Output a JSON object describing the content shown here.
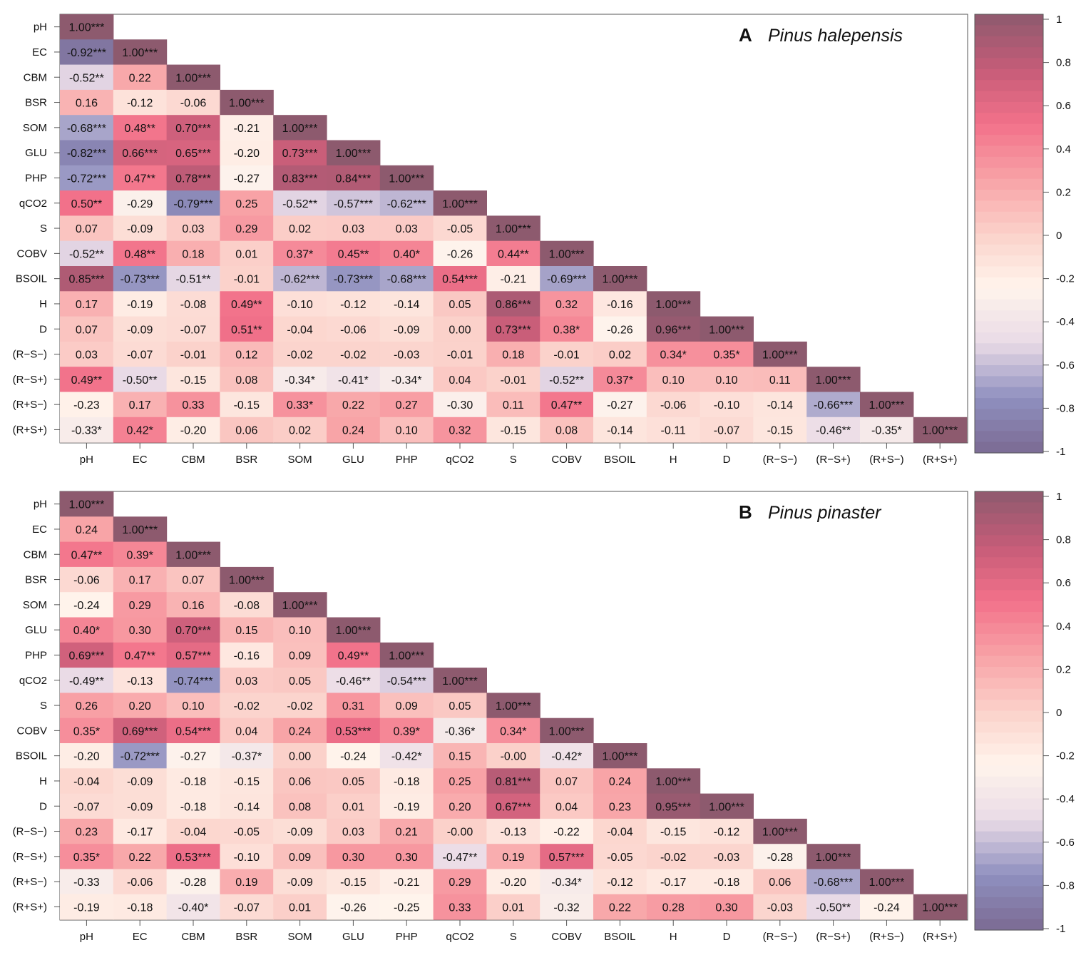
{
  "chart_data": [
    {
      "type": "heatmap",
      "panel_letter": "A",
      "title": "Pinus halepensis",
      "variables": [
        "pH",
        "EC",
        "CBM",
        "BSR",
        "SOM",
        "GLU",
        "PHP",
        "qCO2",
        "S",
        "COBV",
        "BSOIL",
        "H",
        "D",
        "(R−S−)",
        "(R−S+)",
        "(R+S−)",
        "(R+S+)"
      ],
      "colorbar_ticks": [
        "1",
        "0.8",
        "0.6",
        "0.4",
        "0.2",
        "0",
        "-0.2",
        "-0.4",
        "-0.6",
        "-0.8",
        "-1"
      ],
      "value_range": [
        -1,
        1
      ],
      "rows": [
        [
          "1.00***"
        ],
        [
          "-0.92***",
          "1.00***"
        ],
        [
          "-0.52**",
          "0.22",
          "1.00***"
        ],
        [
          "0.16",
          "-0.12",
          "-0.06",
          "1.00***"
        ],
        [
          "-0.68***",
          "0.48**",
          "0.70***",
          "-0.21",
          "1.00***"
        ],
        [
          "-0.82***",
          "0.66***",
          "0.65***",
          "-0.20",
          "0.73***",
          "1.00***"
        ],
        [
          "-0.72***",
          "0.47**",
          "0.78***",
          "-0.27",
          "0.83***",
          "0.84***",
          "1.00***"
        ],
        [
          "0.50**",
          "-0.29",
          "-0.79***",
          "0.25",
          "-0.52**",
          "-0.57***",
          "-0.62***",
          "1.00***"
        ],
        [
          "0.07",
          "-0.09",
          "0.03",
          "0.29",
          "0.02",
          "0.03",
          "0.03",
          "-0.05",
          "1.00***"
        ],
        [
          "-0.52**",
          "0.48**",
          "0.18",
          "0.01",
          "0.37*",
          "0.45**",
          "0.40*",
          "-0.26",
          "0.44**",
          "1.00***"
        ],
        [
          "0.85***",
          "-0.73***",
          "-0.51**",
          "-0.01",
          "-0.62***",
          "-0.73***",
          "-0.68***",
          "0.54***",
          "-0.21",
          "-0.69***",
          "1.00***"
        ],
        [
          "0.17",
          "-0.19",
          "-0.08",
          "0.49**",
          "-0.10",
          "-0.12",
          "-0.14",
          "0.05",
          "0.86***",
          "0.32",
          "-0.16",
          "1.00***"
        ],
        [
          "0.07",
          "-0.09",
          "-0.07",
          "0.51**",
          "-0.04",
          "-0.06",
          "-0.09",
          "0.00",
          "0.73***",
          "0.38*",
          "-0.26",
          "0.96***",
          "1.00***"
        ],
        [
          "0.03",
          "-0.07",
          "-0.01",
          "0.12",
          "-0.02",
          "-0.02",
          "-0.03",
          "-0.01",
          "0.18",
          "-0.01",
          "0.02",
          "0.34*",
          "0.35*",
          "1.00***"
        ],
        [
          "0.49**",
          "-0.50**",
          "-0.15",
          "0.08",
          "-0.34*",
          "-0.41*",
          "-0.34*",
          "0.04",
          "-0.01",
          "-0.52**",
          "0.37*",
          "0.10",
          "0.10",
          "0.11",
          "1.00***"
        ],
        [
          "-0.23",
          "0.17",
          "0.33",
          "-0.15",
          "0.33*",
          "0.22",
          "0.27",
          "-0.30",
          "0.11",
          "0.47**",
          "-0.27",
          "-0.06",
          "-0.10",
          "-0.14",
          "-0.66***",
          "1.00***"
        ],
        [
          "-0.33*",
          "0.42*",
          "-0.20",
          "0.06",
          "0.02",
          "0.24",
          "0.10",
          "0.32",
          "-0.15",
          "0.08",
          "-0.14",
          "-0.11",
          "-0.07",
          "-0.15",
          "-0.46**",
          "-0.35*",
          "1.00***"
        ]
      ]
    },
    {
      "type": "heatmap",
      "panel_letter": "B",
      "title": "Pinus pinaster",
      "variables": [
        "pH",
        "EC",
        "CBM",
        "BSR",
        "SOM",
        "GLU",
        "PHP",
        "qCO2",
        "S",
        "COBV",
        "BSOIL",
        "H",
        "D",
        "(R−S−)",
        "(R−S+)",
        "(R+S−)",
        "(R+S+)"
      ],
      "colorbar_ticks": [
        "1",
        "0.8",
        "0.6",
        "0.4",
        "0.2",
        "0",
        "-0.2",
        "-0.4",
        "-0.6",
        "-0.8",
        "-1"
      ],
      "value_range": [
        -1,
        1
      ],
      "rows": [
        [
          "1.00***"
        ],
        [
          "0.24",
          "1.00***"
        ],
        [
          "0.47**",
          "0.39*",
          "1.00***"
        ],
        [
          "-0.06",
          "0.17",
          "0.07",
          "1.00***"
        ],
        [
          "-0.24",
          "0.29",
          "0.16",
          "-0.08",
          "1.00***"
        ],
        [
          "0.40*",
          "0.30",
          "0.70***",
          "0.15",
          "0.10",
          "1.00***"
        ],
        [
          "0.69***",
          "0.47**",
          "0.57***",
          "-0.16",
          "0.09",
          "0.49**",
          "1.00***"
        ],
        [
          "-0.49**",
          "-0.13",
          "-0.74***",
          "0.03",
          "0.05",
          "-0.46**",
          "-0.54***",
          "1.00***"
        ],
        [
          "0.26",
          "0.20",
          "0.10",
          "-0.02",
          "-0.02",
          "0.31",
          "0.09",
          "0.05",
          "1.00***"
        ],
        [
          "0.35*",
          "0.69***",
          "0.54***",
          "0.04",
          "0.24",
          "0.53***",
          "0.39*",
          "-0.36*",
          "0.34*",
          "1.00***"
        ],
        [
          "-0.20",
          "-0.72***",
          "-0.27",
          "-0.37*",
          "0.00",
          "-0.24",
          "-0.42*",
          "0.15",
          "-0.00",
          "-0.42*",
          "1.00***"
        ],
        [
          "-0.04",
          "-0.09",
          "-0.18",
          "-0.15",
          "0.06",
          "0.05",
          "-0.18",
          "0.25",
          "0.81***",
          "0.07",
          "0.24",
          "1.00***"
        ],
        [
          "-0.07",
          "-0.09",
          "-0.18",
          "-0.14",
          "0.08",
          "0.01",
          "-0.19",
          "0.20",
          "0.67***",
          "0.04",
          "0.23",
          "0.95***",
          "1.00***"
        ],
        [
          "0.23",
          "-0.17",
          "-0.04",
          "-0.05",
          "-0.09",
          "0.03",
          "0.21",
          "-0.00",
          "-0.13",
          "-0.22",
          "-0.04",
          "-0.15",
          "-0.12",
          "1.00***"
        ],
        [
          "0.35*",
          "0.22",
          "0.53***",
          "-0.10",
          "0.09",
          "0.30",
          "0.30",
          "-0.47**",
          "0.19",
          "0.57***",
          "-0.05",
          "-0.02",
          "-0.03",
          "-0.28",
          "1.00***"
        ],
        [
          "-0.33",
          "-0.06",
          "-0.28",
          "0.19",
          "-0.09",
          "-0.15",
          "-0.21",
          "0.29",
          "-0.20",
          "-0.34*",
          "-0.12",
          "-0.17",
          "-0.18",
          "0.06",
          "-0.68***",
          "1.00***"
        ],
        [
          "-0.19",
          "-0.18",
          "-0.40*",
          "-0.07",
          "0.01",
          "-0.26",
          "-0.25",
          "0.33",
          "0.01",
          "-0.32",
          "0.22",
          "0.28",
          "0.30",
          "-0.03",
          "-0.50**",
          "-0.24",
          "1.00***"
        ]
      ]
    }
  ],
  "palette": {
    "stops": [
      "#7b6a93",
      "#8f90bf",
      "#e9dae6",
      "#fff4ec",
      "#fbd1ca",
      "#f8a2a6",
      "#f2718a",
      "#c55c78",
      "#8d5a6e"
    ],
    "frame": "#555555"
  }
}
